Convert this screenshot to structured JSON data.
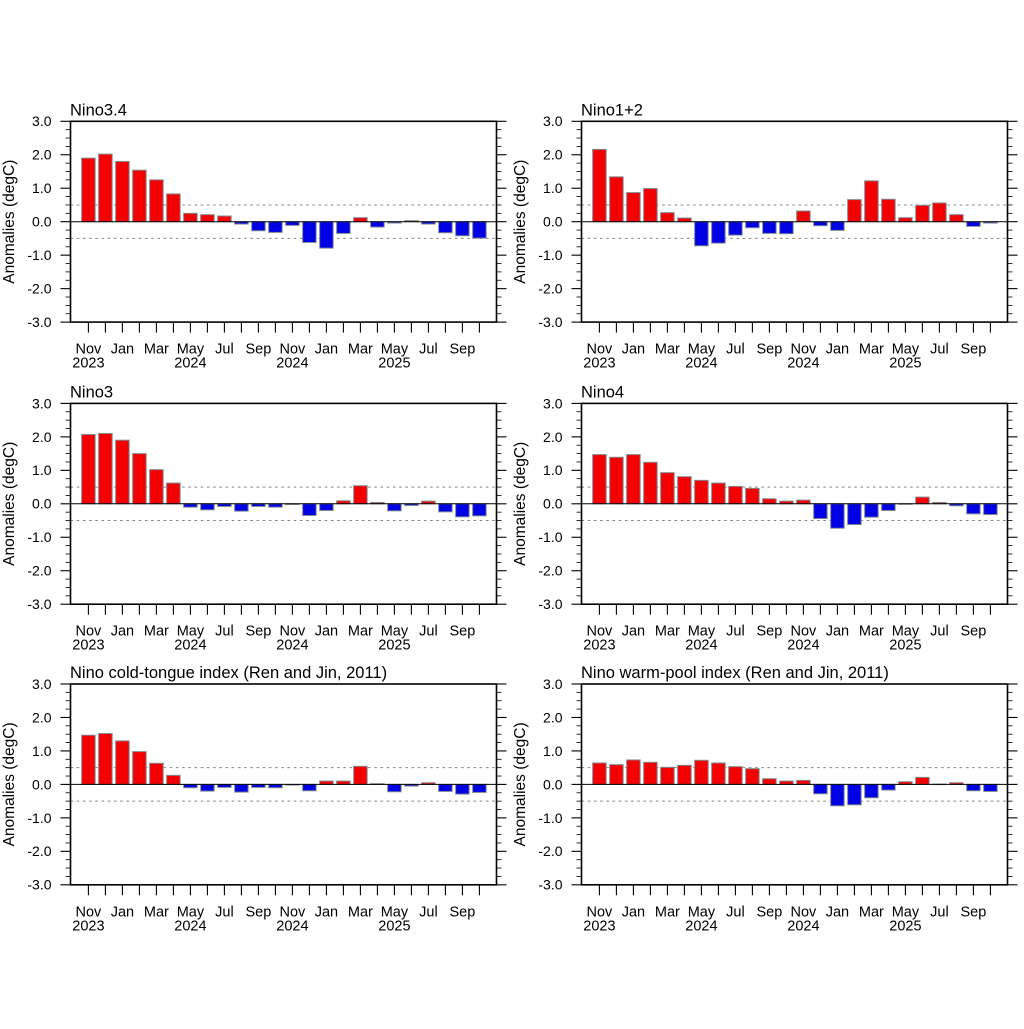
{
  "figure": {
    "background": "#ffffff",
    "description": "Six-panel bar chart of monthly ENSO SST index anomalies from Nov 2023 to Oct 2025"
  },
  "chart_data": [
    {
      "type": "bar",
      "title": "Nino3.4",
      "ylabel": "Anomalies (degC)",
      "xlabel": "",
      "ylim": [
        -3.0,
        3.0
      ],
      "reference_lines": [
        0.5,
        -0.5
      ],
      "categories": [
        "Nov 2023",
        "Dec 2023",
        "Jan 2024",
        "Feb 2024",
        "Mar 2024",
        "Apr 2024",
        "May 2024",
        "Jun 2024",
        "Jul 2024",
        "Aug 2024",
        "Sep 2024",
        "Oct 2024",
        "Nov 2024",
        "Dec 2024",
        "Jan 2025",
        "Feb 2025",
        "Mar 2025",
        "Apr 2025",
        "May 2025",
        "Jun 2025",
        "Jul 2025",
        "Aug 2025",
        "Sep 2025",
        "Oct 2025"
      ],
      "values": [
        1.9,
        2.02,
        1.8,
        1.54,
        1.25,
        0.83,
        0.25,
        0.21,
        0.17,
        -0.07,
        -0.27,
        -0.32,
        -0.11,
        -0.62,
        -0.79,
        -0.35,
        0.12,
        -0.16,
        -0.04,
        0.03,
        -0.07,
        -0.33,
        -0.42,
        -0.49
      ]
    },
    {
      "type": "bar",
      "title": "Nino1+2",
      "ylabel": "Anomalies (degC)",
      "xlabel": "",
      "ylim": [
        -3.0,
        3.0
      ],
      "reference_lines": [
        0.5,
        -0.5
      ],
      "categories": [
        "Nov 2023",
        "Dec 2023",
        "Jan 2024",
        "Feb 2024",
        "Mar 2024",
        "Apr 2024",
        "May 2024",
        "Jun 2024",
        "Jul 2024",
        "Aug 2024",
        "Sep 2024",
        "Oct 2024",
        "Nov 2024",
        "Dec 2024",
        "Jan 2025",
        "Feb 2025",
        "Mar 2025",
        "Apr 2025",
        "May 2025",
        "Jun 2025",
        "Jul 2025",
        "Aug 2025",
        "Sep 2025",
        "Oct 2025"
      ],
      "values": [
        2.16,
        1.34,
        0.87,
        0.99,
        0.27,
        0.11,
        -0.72,
        -0.64,
        -0.4,
        -0.18,
        -0.35,
        -0.36,
        0.32,
        -0.12,
        -0.26,
        0.66,
        1.22,
        0.67,
        0.12,
        0.49,
        0.56,
        0.21,
        -0.14,
        -0.04
      ]
    },
    {
      "type": "bar",
      "title": "Nino3",
      "ylabel": "Anomalies (degC)",
      "xlabel": "",
      "ylim": [
        -3.0,
        3.0
      ],
      "reference_lines": [
        0.5,
        -0.5
      ],
      "categories": [
        "Nov 2023",
        "Dec 2023",
        "Jan 2024",
        "Feb 2024",
        "Mar 2024",
        "Apr 2024",
        "May 2024",
        "Jun 2024",
        "Jul 2024",
        "Aug 2024",
        "Sep 2024",
        "Oct 2024",
        "Nov 2024",
        "Dec 2024",
        "Jan 2025",
        "Feb 2025",
        "Mar 2025",
        "Apr 2025",
        "May 2025",
        "Jun 2025",
        "Jul 2025",
        "Aug 2025",
        "Sep 2025",
        "Oct 2025"
      ],
      "values": [
        2.07,
        2.1,
        1.9,
        1.5,
        1.02,
        0.62,
        -0.1,
        -0.18,
        -0.08,
        -0.22,
        -0.08,
        -0.1,
        -0.02,
        -0.35,
        -0.2,
        0.09,
        0.54,
        0.04,
        -0.21,
        -0.05,
        0.08,
        -0.24,
        -0.39,
        -0.36
      ]
    },
    {
      "type": "bar",
      "title": "Nino4",
      "ylabel": "Anomalies (degC)",
      "xlabel": "",
      "ylim": [
        -3.0,
        3.0
      ],
      "reference_lines": [
        0.5,
        -0.5
      ],
      "categories": [
        "Nov 2023",
        "Dec 2023",
        "Jan 2024",
        "Feb 2024",
        "Mar 2024",
        "Apr 2024",
        "May 2024",
        "Jun 2024",
        "Jul 2024",
        "Aug 2024",
        "Sep 2024",
        "Oct 2024",
        "Nov 2024",
        "Dec 2024",
        "Jan 2025",
        "Feb 2025",
        "Mar 2025",
        "Apr 2025",
        "May 2025",
        "Jun 2025",
        "Jul 2025",
        "Aug 2025",
        "Sep 2025",
        "Oct 2025"
      ],
      "values": [
        1.47,
        1.39,
        1.47,
        1.24,
        0.93,
        0.81,
        0.7,
        0.62,
        0.52,
        0.46,
        0.15,
        0.08,
        0.11,
        -0.44,
        -0.73,
        -0.62,
        -0.4,
        -0.2,
        -0.01,
        0.2,
        0.04,
        -0.06,
        -0.3,
        -0.32
      ]
    },
    {
      "type": "bar",
      "title": "Nino cold-tongue index (Ren and Jin, 2011)",
      "ylabel": "Anomalies (degC)",
      "xlabel": "",
      "ylim": [
        -3.0,
        3.0
      ],
      "reference_lines": [
        0.5,
        -0.5
      ],
      "categories": [
        "Nov 2023",
        "Dec 2023",
        "Jan 2024",
        "Feb 2024",
        "Mar 2024",
        "Apr 2024",
        "May 2024",
        "Jun 2024",
        "Jul 2024",
        "Aug 2024",
        "Sep 2024",
        "Oct 2024",
        "Nov 2024",
        "Dec 2024",
        "Jan 2025",
        "Feb 2025",
        "Mar 2025",
        "Apr 2025",
        "May 2025",
        "Jun 2025",
        "Jul 2025",
        "Aug 2025",
        "Sep 2025",
        "Oct 2025"
      ],
      "values": [
        1.47,
        1.52,
        1.3,
        0.98,
        0.63,
        0.27,
        -0.1,
        -0.2,
        -0.09,
        -0.23,
        -0.09,
        -0.1,
        -0.02,
        -0.19,
        0.1,
        0.1,
        0.54,
        0.02,
        -0.22,
        -0.05,
        0.05,
        -0.21,
        -0.29,
        -0.24
      ]
    },
    {
      "type": "bar",
      "title": "Nino warm-pool index (Ren and Jin, 2011)",
      "ylabel": "Anomalies (degC)",
      "xlabel": "",
      "ylim": [
        -3.0,
        3.0
      ],
      "reference_lines": [
        0.5,
        -0.5
      ],
      "categories": [
        "Nov 2023",
        "Dec 2023",
        "Jan 2024",
        "Feb 2024",
        "Mar 2024",
        "Apr 2024",
        "May 2024",
        "Jun 2024",
        "Jul 2024",
        "Aug 2024",
        "Sep 2024",
        "Oct 2024",
        "Nov 2024",
        "Dec 2024",
        "Jan 2025",
        "Feb 2025",
        "Mar 2025",
        "Apr 2025",
        "May 2025",
        "Jun 2025",
        "Jul 2025",
        "Aug 2025",
        "Sep 2025",
        "Oct 2025"
      ],
      "values": [
        0.64,
        0.59,
        0.73,
        0.66,
        0.51,
        0.57,
        0.72,
        0.64,
        0.53,
        0.47,
        0.17,
        0.1,
        0.12,
        -0.28,
        -0.64,
        -0.61,
        -0.4,
        -0.17,
        0.08,
        0.21,
        0.01,
        0.05,
        -0.19,
        -0.21
      ]
    }
  ],
  "axes": {
    "y_tick_labels": [
      "3.0",
      "2.0",
      "1.0",
      "0.0",
      "-1.0",
      "-2.0",
      "-3.0"
    ],
    "y_tick_values": [
      3,
      2,
      1,
      0,
      -1,
      -2,
      -3
    ],
    "y_minor_step": 0.25,
    "x_tick_months": [
      "Nov",
      "Jan",
      "Mar",
      "May",
      "Jul",
      "Sep",
      "Nov",
      "Jan",
      "Mar",
      "May",
      "Jul",
      "Sep"
    ],
    "x_tick_years": [
      "2023",
      "",
      "",
      "2024",
      "",
      "",
      "2024",
      "",
      "",
      "2025",
      "",
      ""
    ]
  },
  "colors": {
    "positive_bar": "#f40000",
    "negative_bar": "#0000e6",
    "bar_border": "#7f8a91",
    "axis": "#000000",
    "zero_line": "#000000",
    "reference_line": "#848484",
    "text": "#000000",
    "background": "#ffffff"
  }
}
